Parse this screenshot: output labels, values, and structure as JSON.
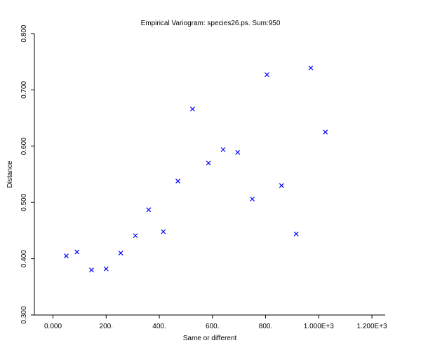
{
  "chart_data": {
    "type": "scatter",
    "title": "Empirical Variogram: species26.ps. Sum:950",
    "xlabel": "Same or different",
    "ylabel": "Distance",
    "xlim": [
      -70,
      1250
    ],
    "ylim": [
      0.3,
      0.8
    ],
    "x_ticks": [
      0,
      200,
      400,
      600,
      800,
      1000,
      1200
    ],
    "x_tick_labels": [
      "0.000",
      "200.",
      "400.",
      "600.",
      "800.",
      "1.000E+3",
      "1.200E+3"
    ],
    "y_ticks": [
      0.3,
      0.4,
      0.5,
      0.6,
      0.7,
      0.8
    ],
    "y_tick_labels": [
      "0.300",
      "0.400",
      "0.500",
      "0.600",
      "0.700",
      "0.800"
    ],
    "marker": "x",
    "marker_color": "#0000ff",
    "grid": false,
    "x": [
      50,
      90,
      145,
      200,
      255,
      310,
      360,
      415,
      470,
      525,
      585,
      640,
      695,
      750,
      805,
      860,
      915,
      970,
      1025
    ],
    "y": [
      0.405,
      0.412,
      0.38,
      0.382,
      0.41,
      0.441,
      0.487,
      0.448,
      0.538,
      0.666,
      0.57,
      0.594,
      0.589,
      0.506,
      0.727,
      0.53,
      0.444,
      0.739,
      0.625
    ]
  }
}
